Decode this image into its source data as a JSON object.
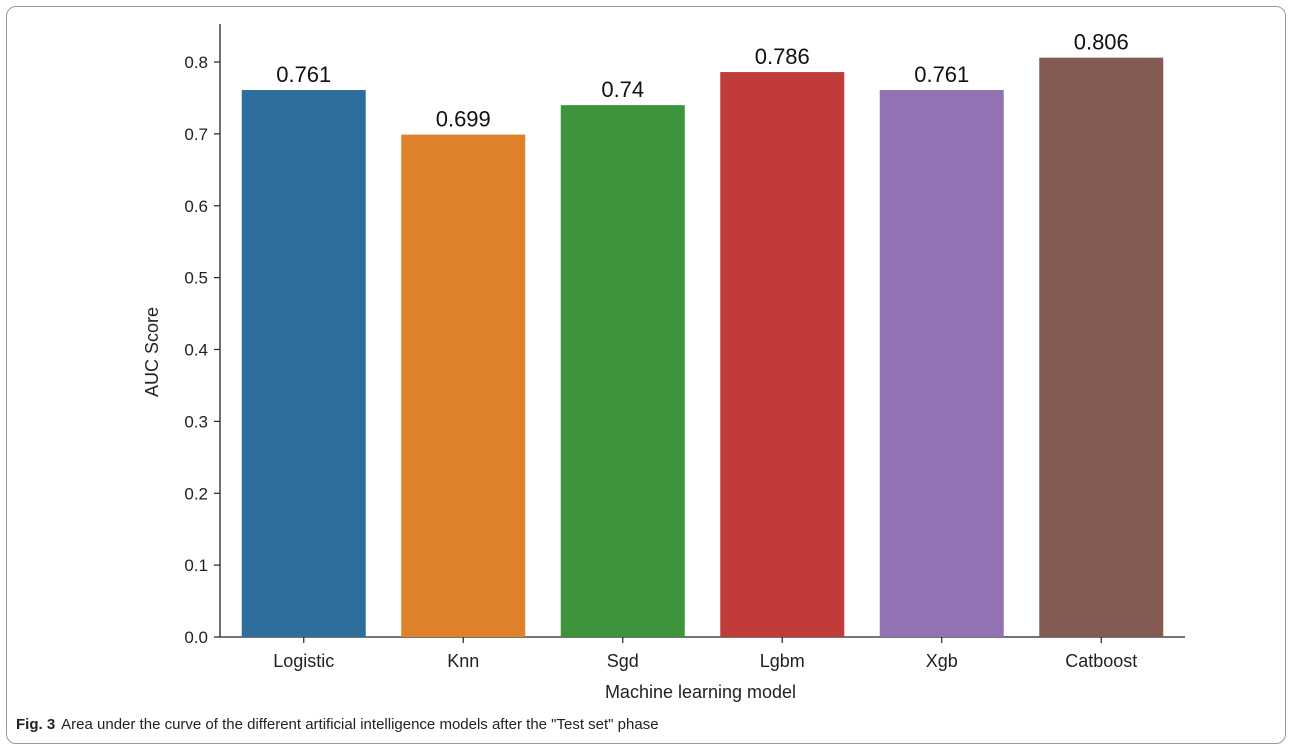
{
  "caption": {
    "label": "Fig. 3",
    "text": "Area under the curve of the different artificial intelligence models after the \"Test set\" phase"
  },
  "chart_data": {
    "type": "bar",
    "categories": [
      "Logistic",
      "Knn",
      "Sgd",
      "Lgbm",
      "Xgb",
      "Catboost"
    ],
    "values": [
      0.761,
      0.699,
      0.74,
      0.786,
      0.761,
      0.806
    ],
    "data_labels": [
      "0.761",
      "0.699",
      "0.74",
      "0.786",
      "0.761",
      "0.806"
    ],
    "colors": [
      "#2e6e9e",
      "#e0812c",
      "#3e943d",
      "#c23b3b",
      "#9272b2",
      "#845a52"
    ],
    "xlabel": "Machine learning model",
    "ylabel": "AUC Score",
    "ylim": [
      0,
      0.85
    ],
    "yticks": [
      "0.0",
      "0.1",
      "0.2",
      "0.3",
      "0.4",
      "0.5",
      "0.6",
      "0.7",
      "0.8"
    ],
    "grid": false,
    "legend": false
  }
}
